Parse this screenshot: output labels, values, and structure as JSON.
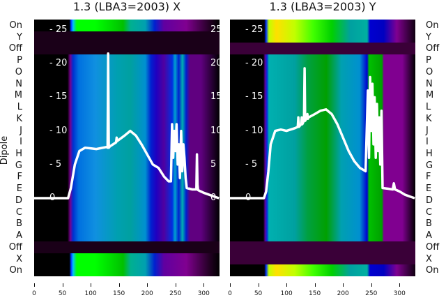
{
  "chart_data": [
    {
      "type": "heatmap",
      "title": "1.3 (LBA3=2003) X",
      "ylabel": "Dipole",
      "rows": [
        "On",
        "Y",
        "Off",
        "P",
        "O",
        "N",
        "M",
        "L",
        "K",
        "J",
        "I",
        "H",
        "G",
        "F",
        "E",
        "D",
        "C",
        "B",
        "A",
        "Off",
        "X",
        "On"
      ],
      "xticks": [
        0,
        50,
        100,
        150,
        200,
        250,
        300
      ],
      "xlim": [
        0,
        327
      ],
      "yticks": [
        0,
        5,
        10,
        15,
        20,
        25
      ],
      "ylim": [
        0,
        26
      ],
      "line": {
        "x": [
          0,
          60,
          65,
          72,
          80,
          90,
          110,
          128,
          130,
          131,
          132,
          134,
          145,
          146,
          147,
          160,
          170,
          180,
          190,
          200,
          210,
          220,
          230,
          238,
          242,
          244,
          246,
          248,
          250,
          252,
          254,
          256,
          258,
          260,
          262,
          264,
          266,
          268,
          270,
          280,
          287,
          288,
          289,
          290,
          295,
          300,
          310,
          320,
          327
        ],
        "y": [
          0,
          0,
          1.5,
          5,
          7,
          7.5,
          7.3,
          7.6,
          7.5,
          21.5,
          7.5,
          7.7,
          8.3,
          9,
          8.5,
          9.3,
          10,
          9.3,
          8,
          6.5,
          5,
          4.5,
          3.2,
          2.5,
          2.5,
          11,
          6,
          10,
          7,
          11,
          5,
          8,
          3,
          10,
          4,
          8,
          6,
          3,
          1.5,
          1.3,
          1.3,
          6.5,
          2,
          1.2,
          1,
          0.8,
          0.5,
          0.2,
          0
        ]
      }
    },
    {
      "type": "heatmap",
      "title": "1.3 (LBA3=2003) Y",
      "ylabel": "",
      "rows": [
        "On",
        "Y",
        "Off",
        "P",
        "O",
        "N",
        "M",
        "L",
        "K",
        "J",
        "I",
        "H",
        "G",
        "F",
        "E",
        "D",
        "C",
        "B",
        "A",
        "Off",
        "X",
        "On"
      ],
      "xticks": [
        0,
        50,
        100,
        150,
        200,
        250,
        300
      ],
      "xlim": [
        0,
        327
      ],
      "yticks": [
        0,
        5,
        10,
        15,
        20,
        25
      ],
      "ylim": [
        0,
        26
      ],
      "line": {
        "x": [
          0,
          60,
          64,
          68,
          72,
          80,
          90,
          100,
          115,
          120,
          121,
          122,
          126,
          127,
          128,
          131,
          132,
          133,
          135,
          137,
          138,
          139,
          150,
          160,
          170,
          180,
          190,
          200,
          210,
          220,
          230,
          240,
          244,
          246,
          248,
          250,
          252,
          254,
          256,
          258,
          260,
          262,
          264,
          266,
          268,
          270,
          280,
          288,
          290,
          292,
          300,
          310,
          320,
          327
        ],
        "y": [
          0,
          0,
          1,
          4,
          8,
          10,
          10.2,
          10,
          10.4,
          10.6,
          12,
          10.6,
          11,
          12,
          11,
          11.5,
          19.3,
          11.5,
          11.8,
          12.5,
          11.8,
          12,
          12.5,
          13,
          13.2,
          12.5,
          11,
          9,
          7,
          5.5,
          4.5,
          4,
          16,
          6,
          18,
          10,
          17,
          8,
          15,
          6,
          14,
          7,
          12,
          5,
          13,
          1.5,
          1.4,
          1.3,
          2.2,
          1.3,
          1,
          0.5,
          0.2,
          0
        ]
      }
    }
  ],
  "colors": {
    "dark_row_x": "#1a0018",
    "dark_row_y": "#3a0038",
    "line": "#ffffff"
  }
}
